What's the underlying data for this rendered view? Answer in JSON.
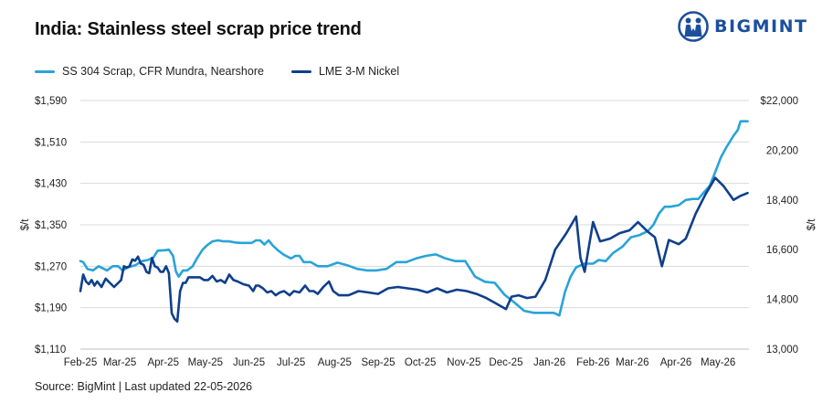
{
  "brand": {
    "name": "BIGMINT",
    "color": "#1b4f9c",
    "icon": "bigmint-logo-icon"
  },
  "colors": {
    "series_light": "#29a3d9",
    "series_dark": "#0f3f8c",
    "grid": "#d9d9d9"
  },
  "footer": {
    "source": "Source: BigMint | Last updated 22-05-2026"
  },
  "chart_data": {
    "type": "line",
    "title": "India: Stainless steel scrap price trend",
    "legend_position": "top-left",
    "grid": "horizontal",
    "x_tick_labels": [
      "Feb-25",
      "Mar-25",
      "Apr-25",
      "May-25",
      "Jun-25",
      "Jul-25",
      "Aug-25",
      "Sep-25",
      "Oct-25",
      "Nov-25",
      "Dec-25",
      "Jan-26",
      "Feb-26",
      "Mar-26",
      "Apr-26",
      "May-26"
    ],
    "x_range": [
      "2025-02-01",
      "2026-05-23"
    ],
    "y_left": {
      "label": "$/t",
      "range": [
        1110,
        1590
      ],
      "ticks": [
        1110,
        1190,
        1270,
        1350,
        1430,
        1510,
        1590
      ],
      "tick_labels": [
        "$1,110",
        "$1,190",
        "$1,270",
        "$1,350",
        "$1,430",
        "$1,510",
        "$1,590"
      ]
    },
    "y_right": {
      "label": "$/t",
      "range": [
        13000,
        22000
      ],
      "ticks": [
        13000,
        14800,
        16600,
        18400,
        20200,
        22000
      ],
      "tick_labels": [
        "13,000",
        "14,800",
        "16,600",
        "18,400",
        "20,200",
        "$22,000"
      ]
    },
    "series": [
      {
        "name": "SS 304 Scrap, CFR Mundra, Nearshore",
        "axis": "left",
        "points": [
          [
            "2025-02-01",
            1280
          ],
          [
            "2025-02-03",
            1278
          ],
          [
            "2025-02-06",
            1265
          ],
          [
            "2025-02-10",
            1262
          ],
          [
            "2025-02-14",
            1270
          ],
          [
            "2025-02-20",
            1262
          ],
          [
            "2025-02-24",
            1270
          ],
          [
            "2025-02-28",
            1270
          ],
          [
            "2025-03-03",
            1262
          ],
          [
            "2025-03-07",
            1268
          ],
          [
            "2025-03-12",
            1272
          ],
          [
            "2025-03-17",
            1280
          ],
          [
            "2025-03-21",
            1282
          ],
          [
            "2025-03-25",
            1287
          ],
          [
            "2025-03-28",
            1300
          ],
          [
            "2025-04-02",
            1301
          ],
          [
            "2025-04-05",
            1302
          ],
          [
            "2025-04-08",
            1290
          ],
          [
            "2025-04-10",
            1260
          ],
          [
            "2025-04-12",
            1250
          ],
          [
            "2025-04-15",
            1262
          ],
          [
            "2025-04-18",
            1262
          ],
          [
            "2025-04-22",
            1270
          ],
          [
            "2025-04-25",
            1285
          ],
          [
            "2025-04-29",
            1302
          ],
          [
            "2025-05-02",
            1310
          ],
          [
            "2025-05-06",
            1318
          ],
          [
            "2025-05-10",
            1320
          ],
          [
            "2025-05-14",
            1318
          ],
          [
            "2025-05-18",
            1318
          ],
          [
            "2025-05-22",
            1316
          ],
          [
            "2025-05-26",
            1315
          ],
          [
            "2025-05-30",
            1315
          ],
          [
            "2025-06-03",
            1315
          ],
          [
            "2025-06-06",
            1320
          ],
          [
            "2025-06-09",
            1320
          ],
          [
            "2025-06-12",
            1312
          ],
          [
            "2025-06-15",
            1320
          ],
          [
            "2025-06-18",
            1310
          ],
          [
            "2025-06-22",
            1300
          ],
          [
            "2025-06-26",
            1292
          ],
          [
            "2025-07-01",
            1285
          ],
          [
            "2025-07-04",
            1290
          ],
          [
            "2025-07-07",
            1290
          ],
          [
            "2025-07-10",
            1278
          ],
          [
            "2025-07-15",
            1278
          ],
          [
            "2025-07-20",
            1270
          ],
          [
            "2025-07-27",
            1270
          ],
          [
            "2025-08-03",
            1277
          ],
          [
            "2025-08-10",
            1272
          ],
          [
            "2025-08-17",
            1265
          ],
          [
            "2025-08-24",
            1262
          ],
          [
            "2025-08-31",
            1262
          ],
          [
            "2025-09-07",
            1265
          ],
          [
            "2025-09-14",
            1278
          ],
          [
            "2025-09-21",
            1278
          ],
          [
            "2025-09-28",
            1285
          ],
          [
            "2025-10-05",
            1290
          ],
          [
            "2025-10-12",
            1293
          ],
          [
            "2025-10-19",
            1285
          ],
          [
            "2025-10-26",
            1280
          ],
          [
            "2025-11-02",
            1280
          ],
          [
            "2025-11-09",
            1250
          ],
          [
            "2025-11-16",
            1240
          ],
          [
            "2025-11-23",
            1238
          ],
          [
            "2025-11-30",
            1215
          ],
          [
            "2025-12-07",
            1200
          ],
          [
            "2025-12-14",
            1184
          ],
          [
            "2025-12-21",
            1180
          ],
          [
            "2025-12-28",
            1180
          ],
          [
            "2026-01-04",
            1180
          ],
          [
            "2026-01-08",
            1175
          ],
          [
            "2026-01-12",
            1220
          ],
          [
            "2026-01-16",
            1250
          ],
          [
            "2026-01-20",
            1268
          ],
          [
            "2026-01-26",
            1275
          ],
          [
            "2026-02-01",
            1275
          ],
          [
            "2026-02-05",
            1282
          ],
          [
            "2026-02-10",
            1280
          ],
          [
            "2026-02-15",
            1295
          ],
          [
            "2026-02-22",
            1308
          ],
          [
            "2026-02-28",
            1326
          ],
          [
            "2026-03-06",
            1330
          ],
          [
            "2026-03-12",
            1338
          ],
          [
            "2026-03-16",
            1350
          ],
          [
            "2026-03-20",
            1372
          ],
          [
            "2026-03-24",
            1385
          ],
          [
            "2026-03-28",
            1385
          ],
          [
            "2026-04-03",
            1388
          ],
          [
            "2026-04-08",
            1398
          ],
          [
            "2026-04-13",
            1400
          ],
          [
            "2026-04-17",
            1400
          ],
          [
            "2026-04-21",
            1413
          ],
          [
            "2026-04-25",
            1425
          ],
          [
            "2026-04-29",
            1452
          ],
          [
            "2026-05-03",
            1480
          ],
          [
            "2026-05-07",
            1500
          ],
          [
            "2026-05-12",
            1522
          ],
          [
            "2026-05-15",
            1533
          ],
          [
            "2026-05-17",
            1550
          ],
          [
            "2026-05-22",
            1550
          ]
        ]
      },
      {
        "name": "LME 3-M Nickel",
        "axis": "right",
        "points": [
          [
            "2025-02-01",
            15100
          ],
          [
            "2025-02-03",
            15700
          ],
          [
            "2025-02-05",
            15450
          ],
          [
            "2025-02-07",
            15350
          ],
          [
            "2025-02-09",
            15500
          ],
          [
            "2025-02-11",
            15300
          ],
          [
            "2025-02-13",
            15450
          ],
          [
            "2025-02-16",
            15250
          ],
          [
            "2025-02-19",
            15550
          ],
          [
            "2025-02-22",
            15400
          ],
          [
            "2025-02-25",
            15250
          ],
          [
            "2025-02-28",
            15400
          ],
          [
            "2025-03-02",
            15500
          ],
          [
            "2025-03-04",
            16000
          ],
          [
            "2025-03-06",
            15950
          ],
          [
            "2025-03-08",
            16000
          ],
          [
            "2025-03-10",
            16250
          ],
          [
            "2025-03-12",
            16200
          ],
          [
            "2025-03-14",
            16350
          ],
          [
            "2025-03-16",
            16100
          ],
          [
            "2025-03-18",
            16050
          ],
          [
            "2025-03-20",
            15800
          ],
          [
            "2025-03-22",
            15750
          ],
          [
            "2025-03-24",
            16300
          ],
          [
            "2025-03-26",
            16000
          ],
          [
            "2025-03-28",
            15950
          ],
          [
            "2025-03-30",
            15800
          ],
          [
            "2025-04-01",
            15800
          ],
          [
            "2025-04-03",
            16000
          ],
          [
            "2025-04-05",
            15750
          ],
          [
            "2025-04-07",
            14300
          ],
          [
            "2025-04-09",
            14100
          ],
          [
            "2025-04-11",
            14000
          ],
          [
            "2025-04-13",
            15100
          ],
          [
            "2025-04-15",
            15400
          ],
          [
            "2025-04-17",
            15400
          ],
          [
            "2025-04-19",
            15600
          ],
          [
            "2025-04-23",
            15600
          ],
          [
            "2025-04-27",
            15600
          ],
          [
            "2025-04-30",
            15500
          ],
          [
            "2025-05-03",
            15500
          ],
          [
            "2025-05-06",
            15650
          ],
          [
            "2025-05-09",
            15450
          ],
          [
            "2025-05-12",
            15500
          ],
          [
            "2025-05-15",
            15400
          ],
          [
            "2025-05-18",
            15700
          ],
          [
            "2025-05-21",
            15500
          ],
          [
            "2025-05-24",
            15450
          ],
          [
            "2025-05-28",
            15350
          ],
          [
            "2025-06-01",
            15300
          ],
          [
            "2025-06-04",
            15100
          ],
          [
            "2025-06-06",
            15300
          ],
          [
            "2025-06-08",
            15300
          ],
          [
            "2025-06-11",
            15200
          ],
          [
            "2025-06-14",
            15050
          ],
          [
            "2025-06-17",
            15100
          ],
          [
            "2025-06-20",
            14950
          ],
          [
            "2025-06-23",
            15050
          ],
          [
            "2025-06-26",
            15100
          ],
          [
            "2025-06-30",
            14950
          ],
          [
            "2025-07-03",
            15100
          ],
          [
            "2025-07-07",
            15050
          ],
          [
            "2025-07-11",
            15300
          ],
          [
            "2025-07-14",
            15100
          ],
          [
            "2025-07-17",
            15100
          ],
          [
            "2025-07-20",
            15000
          ],
          [
            "2025-07-24",
            15250
          ],
          [
            "2025-07-28",
            15450
          ],
          [
            "2025-07-31",
            15100
          ],
          [
            "2025-08-04",
            14950
          ],
          [
            "2025-08-11",
            14950
          ],
          [
            "2025-08-18",
            15100
          ],
          [
            "2025-08-25",
            15050
          ],
          [
            "2025-09-01",
            15000
          ],
          [
            "2025-09-08",
            15200
          ],
          [
            "2025-09-15",
            15250
          ],
          [
            "2025-09-22",
            15200
          ],
          [
            "2025-09-29",
            15150
          ],
          [
            "2025-10-06",
            15050
          ],
          [
            "2025-10-13",
            15200
          ],
          [
            "2025-10-20",
            15050
          ],
          [
            "2025-10-27",
            15150
          ],
          [
            "2025-11-03",
            15100
          ],
          [
            "2025-11-10",
            15000
          ],
          [
            "2025-11-17",
            14850
          ],
          [
            "2025-11-24",
            14650
          ],
          [
            "2025-12-01",
            14450
          ],
          [
            "2025-12-05",
            14900
          ],
          [
            "2025-12-10",
            14950
          ],
          [
            "2025-12-16",
            14850
          ],
          [
            "2025-12-22",
            14900
          ],
          [
            "2025-12-29",
            15500
          ],
          [
            "2026-01-05",
            16600
          ],
          [
            "2026-01-13",
            17200
          ],
          [
            "2026-01-20",
            17800
          ],
          [
            "2026-01-23",
            16300
          ],
          [
            "2026-01-26",
            15800
          ],
          [
            "2026-02-01",
            17600
          ],
          [
            "2026-02-06",
            16900
          ],
          [
            "2026-02-13",
            17000
          ],
          [
            "2026-02-20",
            17200
          ],
          [
            "2026-02-27",
            17300
          ],
          [
            "2026-03-05",
            17600
          ],
          [
            "2026-03-12",
            17250
          ],
          [
            "2026-03-17",
            17050
          ],
          [
            "2026-03-22",
            16000
          ],
          [
            "2026-03-27",
            16950
          ],
          [
            "2026-04-03",
            16800
          ],
          [
            "2026-04-08",
            17000
          ],
          [
            "2026-04-15",
            17900
          ],
          [
            "2026-04-22",
            18600
          ],
          [
            "2026-04-29",
            19200
          ],
          [
            "2026-05-05",
            18900
          ],
          [
            "2026-05-12",
            18400
          ],
          [
            "2026-05-17",
            18550
          ],
          [
            "2026-05-22",
            18650
          ]
        ]
      }
    ]
  }
}
